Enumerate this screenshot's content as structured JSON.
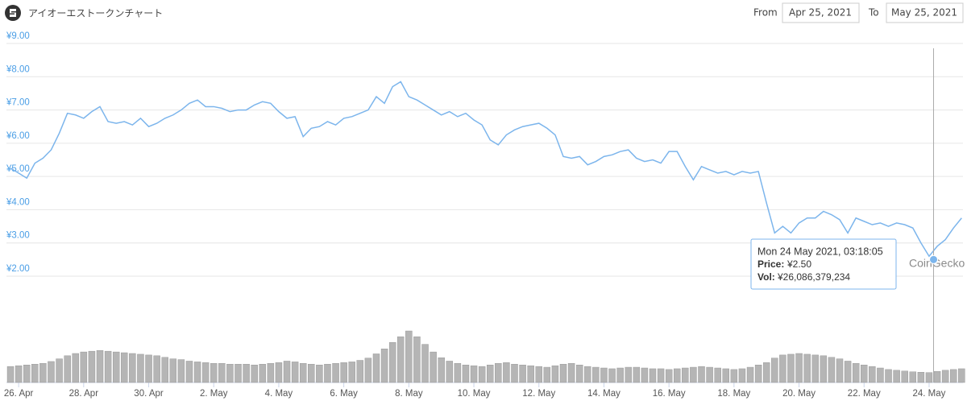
{
  "header": {
    "title": "アイオーエストークンチャート",
    "from_label": "From",
    "from": "Apr 25, 2021",
    "to_label": "To",
    "to": "May 25, 2021"
  },
  "watermark": "CoinGecko",
  "chart_data": {
    "type": "line",
    "x": [
      "2021-04-25T18:00",
      "2021-04-26T00:00",
      "2021-04-26T06:00",
      "2021-04-26T12:00",
      "2021-04-26T18:00",
      "2021-04-27T00:00",
      "2021-04-27T06:00",
      "2021-04-27T12:00",
      "2021-04-27T18:00",
      "2021-04-28T00:00",
      "2021-04-28T06:00",
      "2021-04-28T12:00",
      "2021-04-28T18:00",
      "2021-04-29T00:00",
      "2021-04-29T06:00",
      "2021-04-29T12:00",
      "2021-04-29T18:00",
      "2021-04-30T00:00",
      "2021-04-30T06:00",
      "2021-04-30T12:00",
      "2021-04-30T18:00",
      "2021-05-01T00:00",
      "2021-05-01T06:00",
      "2021-05-01T12:00",
      "2021-05-01T18:00",
      "2021-05-02T00:00",
      "2021-05-02T06:00",
      "2021-05-02T12:00",
      "2021-05-02T18:00",
      "2021-05-03T00:00",
      "2021-05-03T06:00",
      "2021-05-03T12:00",
      "2021-05-03T18:00",
      "2021-05-04T00:00",
      "2021-05-04T06:00",
      "2021-05-04T12:00",
      "2021-05-04T18:00",
      "2021-05-05T00:00",
      "2021-05-05T06:00",
      "2021-05-05T12:00",
      "2021-05-05T18:00",
      "2021-05-06T00:00",
      "2021-05-06T06:00",
      "2021-05-06T12:00",
      "2021-05-06T18:00",
      "2021-05-07T00:00",
      "2021-05-07T06:00",
      "2021-05-07T12:00",
      "2021-05-07T18:00",
      "2021-05-08T00:00",
      "2021-05-08T06:00",
      "2021-05-08T12:00",
      "2021-05-08T18:00",
      "2021-05-09T00:00",
      "2021-05-09T06:00",
      "2021-05-09T12:00",
      "2021-05-09T18:00",
      "2021-05-10T00:00",
      "2021-05-10T06:00",
      "2021-05-10T12:00",
      "2021-05-10T18:00",
      "2021-05-11T00:00",
      "2021-05-11T06:00",
      "2021-05-11T12:00",
      "2021-05-11T18:00",
      "2021-05-12T00:00",
      "2021-05-12T06:00",
      "2021-05-12T12:00",
      "2021-05-12T18:00",
      "2021-05-13T00:00",
      "2021-05-13T06:00",
      "2021-05-13T12:00",
      "2021-05-13T18:00",
      "2021-05-14T00:00",
      "2021-05-14T06:00",
      "2021-05-14T12:00",
      "2021-05-14T18:00",
      "2021-05-15T00:00",
      "2021-05-15T06:00",
      "2021-05-15T12:00",
      "2021-05-15T18:00",
      "2021-05-16T00:00",
      "2021-05-16T06:00",
      "2021-05-16T12:00",
      "2021-05-16T18:00",
      "2021-05-17T00:00",
      "2021-05-17T06:00",
      "2021-05-17T12:00",
      "2021-05-17T18:00",
      "2021-05-18T00:00",
      "2021-05-18T06:00",
      "2021-05-18T12:00",
      "2021-05-18T18:00",
      "2021-05-19T00:00",
      "2021-05-19T06:00",
      "2021-05-19T12:00",
      "2021-05-19T18:00",
      "2021-05-20T00:00",
      "2021-05-20T06:00",
      "2021-05-20T12:00",
      "2021-05-20T18:00",
      "2021-05-21T00:00",
      "2021-05-21T06:00",
      "2021-05-21T12:00",
      "2021-05-21T18:00",
      "2021-05-22T00:00",
      "2021-05-22T06:00",
      "2021-05-22T12:00",
      "2021-05-22T18:00",
      "2021-05-23T00:00",
      "2021-05-23T06:00",
      "2021-05-23T12:00",
      "2021-05-23T18:00",
      "2021-05-24T00:00",
      "2021-05-24T06:00",
      "2021-05-24T12:00",
      "2021-05-24T18:00",
      "2021-05-25T00:00"
    ],
    "xlim": [
      "2021-04-25T15:00",
      "2021-05-25T01:00"
    ],
    "xticks": [
      {
        "value": "2021-04-26T00:00",
        "label": "26. Apr"
      },
      {
        "value": "2021-04-28T00:00",
        "label": "28. Apr"
      },
      {
        "value": "2021-04-30T00:00",
        "label": "30. Apr"
      },
      {
        "value": "2021-05-02T00:00",
        "label": "2. May"
      },
      {
        "value": "2021-05-04T00:00",
        "label": "4. May"
      },
      {
        "value": "2021-05-06T00:00",
        "label": "6. May"
      },
      {
        "value": "2021-05-08T00:00",
        "label": "8. May"
      },
      {
        "value": "2021-05-10T00:00",
        "label": "10. May"
      },
      {
        "value": "2021-05-12T00:00",
        "label": "12. May"
      },
      {
        "value": "2021-05-14T00:00",
        "label": "14. May"
      },
      {
        "value": "2021-05-16T00:00",
        "label": "16. May"
      },
      {
        "value": "2021-05-18T00:00",
        "label": "18. May"
      },
      {
        "value": "2021-05-20T00:00",
        "label": "20. May"
      },
      {
        "value": "2021-05-22T00:00",
        "label": "22. May"
      },
      {
        "value": "2021-05-24T00:00",
        "label": "24. May"
      }
    ],
    "ylim": [
      2,
      9
    ],
    "yticks": [
      {
        "value": 2,
        "label": "¥2.00"
      },
      {
        "value": 3,
        "label": "¥3.00"
      },
      {
        "value": 4,
        "label": "¥4.00"
      },
      {
        "value": 5,
        "label": "¥5.00"
      },
      {
        "value": 6,
        "label": "¥6.00"
      },
      {
        "value": 7,
        "label": "¥7.00"
      },
      {
        "value": 8,
        "label": "¥8.00"
      },
      {
        "value": 9,
        "label": "¥9.00"
      }
    ],
    "grid": true,
    "series": [
      {
        "name": "Price:",
        "type": "line",
        "color": "#7cb5ec",
        "values": [
          5.25,
          5.1,
          4.95,
          5.4,
          5.55,
          5.8,
          6.3,
          6.9,
          6.85,
          6.75,
          6.95,
          7.1,
          6.65,
          6.6,
          6.65,
          6.55,
          6.75,
          6.5,
          6.6,
          6.75,
          6.85,
          7.0,
          7.2,
          7.3,
          7.1,
          7.1,
          7.05,
          6.95,
          7.0,
          7.0,
          7.15,
          7.25,
          7.2,
          6.95,
          6.75,
          6.8,
          6.2,
          6.45,
          6.5,
          6.65,
          6.55,
          6.75,
          6.8,
          6.9,
          7.0,
          7.4,
          7.2,
          7.7,
          7.85,
          7.4,
          7.3,
          7.15,
          7.0,
          6.85,
          6.95,
          6.8,
          6.9,
          6.7,
          6.55,
          6.1,
          5.95,
          6.25,
          6.4,
          6.5,
          6.55,
          6.6,
          6.45,
          6.25,
          5.6,
          5.55,
          5.6,
          5.35,
          5.45,
          5.6,
          5.65,
          5.75,
          5.8,
          5.55,
          5.45,
          5.5,
          5.4,
          5.75,
          5.75,
          5.3,
          4.9,
          5.3,
          5.2,
          5.1,
          5.15,
          5.05,
          5.15,
          5.1,
          5.15,
          4.2,
          3.3,
          3.5,
          3.3,
          3.6,
          3.75,
          3.75,
          3.95,
          3.85,
          3.7,
          3.3,
          3.75,
          3.65,
          3.55,
          3.6,
          3.5,
          3.6,
          3.55,
          3.45,
          3.0,
          2.6,
          2.9,
          3.1,
          3.45,
          3.75
        ]
      },
      {
        "name": "Vol:",
        "type": "bar",
        "color": "#b5b5b5",
        "values": [
          42000000000.0,
          44000000000.0,
          46000000000.0,
          48000000000.0,
          50000000000.0,
          55000000000.0,
          62000000000.0,
          70000000000.0,
          76000000000.0,
          80000000000.0,
          82000000000.0,
          84000000000.0,
          82000000000.0,
          80000000000.0,
          78000000000.0,
          76000000000.0,
          74000000000.0,
          72000000000.0,
          70000000000.0,
          66000000000.0,
          62000000000.0,
          60000000000.0,
          56000000000.0,
          54000000000.0,
          52000000000.0,
          50000000000.0,
          50000000000.0,
          48000000000.0,
          48000000000.0,
          48000000000.0,
          46000000000.0,
          48000000000.0,
          50000000000.0,
          52000000000.0,
          56000000000.0,
          54000000000.0,
          50000000000.0,
          48000000000.0,
          46000000000.0,
          48000000000.0,
          50000000000.0,
          52000000000.0,
          54000000000.0,
          58000000000.0,
          64000000000.0,
          75000000000.0,
          88000000000.0,
          105000000000.0,
          120000000000.0,
          135000000000.0,
          120000000000.0,
          100000000000.0,
          80000000000.0,
          65000000000.0,
          56000000000.0,
          50000000000.0,
          46000000000.0,
          44000000000.0,
          42000000000.0,
          46000000000.0,
          50000000000.0,
          52000000000.0,
          48000000000.0,
          46000000000.0,
          44000000000.0,
          42000000000.0,
          40000000000.0,
          44000000000.0,
          48000000000.0,
          50000000000.0,
          46000000000.0,
          42000000000.0,
          40000000000.0,
          38000000000.0,
          36000000000.0,
          38000000000.0,
          40000000000.0,
          40000000000.0,
          38000000000.0,
          36000000000.0,
          36000000000.0,
          34000000000.0,
          36000000000.0,
          38000000000.0,
          40000000000.0,
          42000000000.0,
          40000000000.0,
          38000000000.0,
          36000000000.0,
          34000000000.0,
          36000000000.0,
          40000000000.0,
          46000000000.0,
          52000000000.0,
          64000000000.0,
          72000000000.0,
          74000000000.0,
          76000000000.0,
          74000000000.0,
          72000000000.0,
          70000000000.0,
          66000000000.0,
          62000000000.0,
          56000000000.0,
          50000000000.0,
          46000000000.0,
          42000000000.0,
          38000000000.0,
          34000000000.0,
          32000000000.0,
          30000000000.0,
          28000000000.0,
          27000000000.0,
          26000000000.0,
          29000000000.0,
          32000000000.0,
          34000000000.0,
          36000000000.0
        ]
      }
    ],
    "tooltip": {
      "x": "2021-05-24T03:18:05",
      "title": "Mon 24 May 2021, 03:18:05",
      "price": {
        "value": 2.5,
        "label": "¥2.50"
      },
      "vol": {
        "value": 26086379234,
        "label": "¥26,086,379,234"
      }
    }
  }
}
